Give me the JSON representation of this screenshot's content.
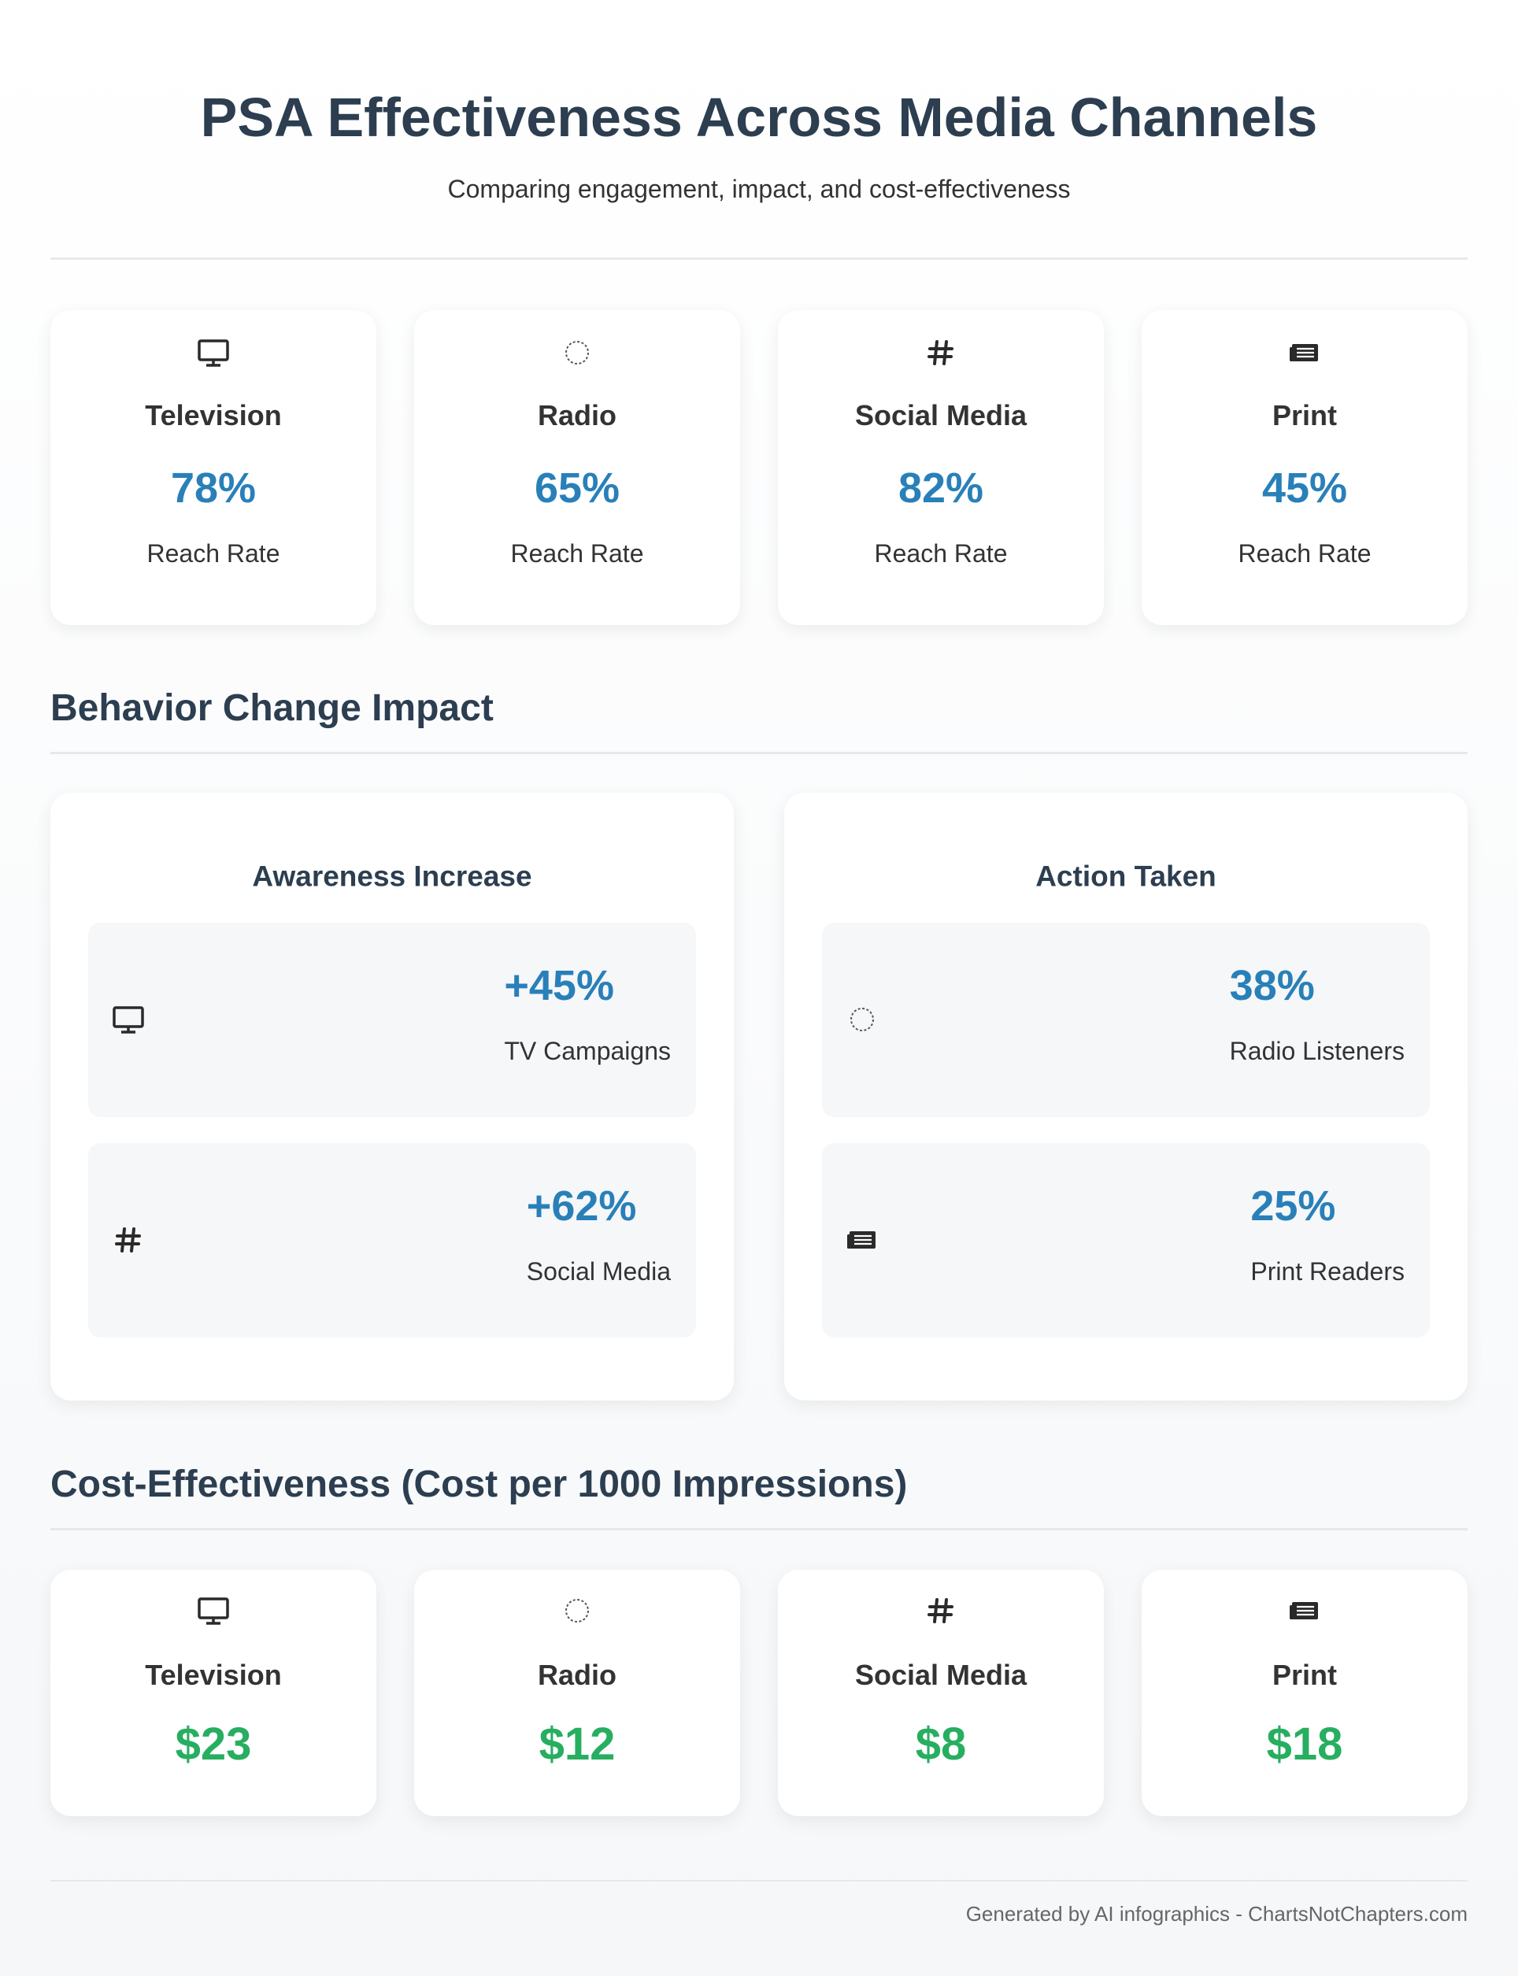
{
  "header": {
    "title": "PSA Effectiveness Across Media Channels",
    "subtitle": "Comparing engagement, impact, and cost-effectiveness"
  },
  "reach": {
    "cards": [
      {
        "name": "Television",
        "value": "78%",
        "label": "Reach Rate"
      },
      {
        "name": "Radio",
        "value": "65%",
        "label": "Reach Rate"
      },
      {
        "name": "Social Media",
        "value": "82%",
        "label": "Reach Rate"
      },
      {
        "name": "Print",
        "value": "45%",
        "label": "Reach Rate"
      }
    ]
  },
  "behavior": {
    "title": "Behavior Change Impact",
    "panels": [
      {
        "title": "Awareness Increase",
        "items": [
          {
            "value": "+45%",
            "label": "TV Campaigns"
          },
          {
            "value": "+62%",
            "label": "Social Media"
          }
        ]
      },
      {
        "title": "Action Taken",
        "items": [
          {
            "value": "38%",
            "label": "Radio Listeners"
          },
          {
            "value": "25%",
            "label": "Print Readers"
          }
        ]
      }
    ]
  },
  "cost": {
    "title": "Cost-Effectiveness (Cost per 1000 Impressions)",
    "cards": [
      {
        "name": "Television",
        "value": "$23"
      },
      {
        "name": "Radio",
        "value": "$12"
      },
      {
        "name": "Social Media",
        "value": "$8"
      },
      {
        "name": "Print",
        "value": "$18"
      }
    ]
  },
  "footer": {
    "text": "Generated by AI infographics - ChartsNotChapters.com"
  }
}
